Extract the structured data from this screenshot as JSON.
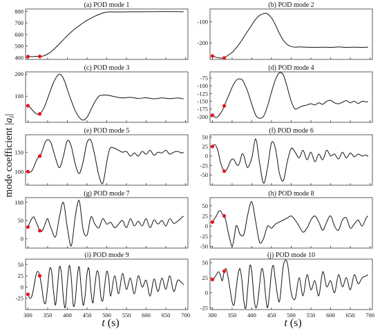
{
  "figure": {
    "ylabel_prefix": "mode coefficient |",
    "ylabel_var": "a",
    "ylabel_sub": "i",
    "ylabel_suffix": "|",
    "xlabel_var": "t",
    "xlabel_unit": " (s)",
    "colors": {
      "line": "#111111",
      "marker": "#e8141b",
      "axis": "#333333"
    }
  },
  "chart_data": [
    {
      "type": "line",
      "title": "(a) POD mode 1",
      "xlim": [
        294,
        706
      ],
      "ylim": [
        385,
        820
      ],
      "yticks": [
        "400",
        "500",
        "600",
        "700",
        "800"
      ],
      "xticks": [],
      "x": [
        300,
        305,
        310,
        315,
        320,
        325,
        330,
        335,
        340,
        345,
        350,
        355,
        360,
        365,
        370,
        380,
        390,
        400,
        410,
        420,
        430,
        440,
        450,
        460,
        470,
        480,
        490,
        500,
        505,
        510,
        520,
        540,
        560,
        580,
        600,
        620,
        640,
        660,
        680,
        695
      ],
      "y": [
        410,
        410,
        409,
        410,
        412,
        411,
        411,
        412,
        416,
        423,
        432,
        442,
        455,
        470,
        486,
        520,
        555,
        590,
        622,
        650,
        676,
        700,
        722,
        741,
        758,
        772,
        785,
        793,
        795,
        795,
        795,
        795,
        796,
        796,
        797,
        797,
        798,
        798,
        797,
        796
      ],
      "markers": [
        {
          "x": 300,
          "y": 410
        },
        {
          "x": 330,
          "y": 411
        }
      ]
    },
    {
      "type": "line",
      "title": "(b) POD mode 2",
      "xlim": [
        294,
        706
      ],
      "ylim": [
        -278,
        -40
      ],
      "yticks": [
        "-100",
        "-200"
      ],
      "xticks": [],
      "x": [
        300,
        305,
        310,
        315,
        320,
        325,
        330,
        340,
        350,
        360,
        370,
        380,
        390,
        400,
        410,
        420,
        430,
        435,
        440,
        450,
        460,
        470,
        480,
        490,
        500,
        510,
        520,
        540,
        560,
        580,
        600,
        620,
        640,
        660,
        680,
        695
      ],
      "y": [
        -262,
        -265,
        -268,
        -270,
        -271,
        -272,
        -271,
        -258,
        -245,
        -225,
        -200,
        -172,
        -143,
        -115,
        -88,
        -70,
        -62,
        -60,
        -63,
        -82,
        -115,
        -155,
        -188,
        -208,
        -217,
        -220,
        -219,
        -220,
        -221,
        -220,
        -221,
        -219,
        -221,
        -220,
        -221,
        -220
      ],
      "markers": [
        {
          "x": 300,
          "y": -262
        },
        {
          "x": 330,
          "y": -271
        }
      ]
    },
    {
      "type": "line",
      "title": "(c) POD mode 3",
      "xlim": [
        294,
        706
      ],
      "ylim": [
        -18,
        210
      ],
      "yticks": [
        "100",
        "200"
      ],
      "xticks": [],
      "x": [
        300,
        305,
        310,
        315,
        320,
        325,
        330,
        335,
        340,
        345,
        350,
        355,
        360,
        365,
        370,
        375,
        380,
        385,
        390,
        395,
        400,
        410,
        420,
        430,
        440,
        450,
        460,
        470,
        480,
        490,
        500,
        510,
        520,
        540,
        560,
        580,
        600,
        620,
        640,
        660,
        680,
        695
      ],
      "y": [
        57,
        50,
        40,
        30,
        22,
        18,
        20,
        30,
        45,
        65,
        90,
        115,
        140,
        162,
        180,
        193,
        200,
        195,
        180,
        158,
        130,
        80,
        35,
        5,
        -8,
        5,
        40,
        75,
        100,
        105,
        105,
        102,
        98,
        92,
        95,
        90,
        93,
        88,
        92,
        89,
        92,
        88
      ],
      "markers": [
        {
          "x": 300,
          "y": 57
        },
        {
          "x": 330,
          "y": 20
        }
      ]
    },
    {
      "type": "line",
      "title": "(d) POD mode 4",
      "xlim": [
        294,
        706
      ],
      "ylim": [
        -218,
        -55
      ],
      "yticks": [
        "-75",
        "-100",
        "-125",
        "-150",
        "-175",
        "-200"
      ],
      "xticks": [],
      "x": [
        300,
        305,
        310,
        315,
        320,
        325,
        330,
        335,
        340,
        345,
        350,
        355,
        360,
        365,
        370,
        375,
        380,
        390,
        400,
        410,
        420,
        430,
        440,
        450,
        460,
        470,
        480,
        490,
        500,
        510,
        520,
        530,
        540,
        550,
        560,
        570,
        580,
        590,
        600,
        610,
        620,
        630,
        640,
        650,
        660,
        670,
        680,
        690,
        695
      ],
      "y": [
        -195,
        -200,
        -203,
        -198,
        -190,
        -180,
        -165,
        -150,
        -135,
        -120,
        -105,
        -92,
        -83,
        -78,
        -78,
        -80,
        -90,
        -120,
        -160,
        -195,
        -205,
        -198,
        -165,
        -120,
        -80,
        -58,
        -65,
        -105,
        -150,
        -175,
        -170,
        -165,
        -162,
        -158,
        -162,
        -155,
        -160,
        -150,
        -147,
        -155,
        -158,
        -153,
        -148,
        -155,
        -150,
        -157,
        -150,
        -152,
        -151
      ],
      "markers": [
        {
          "x": 300,
          "y": -195
        },
        {
          "x": 330,
          "y": -165
        }
      ]
    },
    {
      "type": "line",
      "title": "(e) POD mode 5",
      "xlim": [
        294,
        706
      ],
      "ylim": [
        65,
        195
      ],
      "yticks": [
        "100",
        "150"
      ],
      "xticks": [],
      "x": [
        300,
        305,
        310,
        315,
        320,
        325,
        330,
        335,
        340,
        345,
        350,
        355,
        360,
        370,
        380,
        390,
        400,
        410,
        420,
        430,
        440,
        450,
        460,
        470,
        480,
        490,
        500,
        505,
        510,
        520,
        530,
        540,
        550,
        560,
        570,
        580,
        590,
        600,
        610,
        620,
        630,
        640,
        650,
        660,
        670,
        680,
        690,
        695
      ],
      "y": [
        100,
        98,
        102,
        112,
        125,
        135,
        140,
        150,
        165,
        178,
        182,
        180,
        170,
        135,
        110,
        140,
        180,
        165,
        120,
        95,
        125,
        175,
        180,
        140,
        90,
        70,
        125,
        150,
        162,
        160,
        155,
        150,
        152,
        140,
        148,
        140,
        152,
        145,
        155,
        142,
        150,
        148,
        155,
        145,
        150,
        152,
        148,
        150
      ],
      "markers": [
        {
          "x": 300,
          "y": 100
        },
        {
          "x": 330,
          "y": 140
        }
      ]
    },
    {
      "type": "line",
      "title": "(f) POD mode 6",
      "xlim": [
        294,
        706
      ],
      "ylim": [
        -77,
        56
      ],
      "yticks": [
        "50",
        "25",
        "0",
        "-25",
        "-50"
      ],
      "xticks": [],
      "x": [
        300,
        305,
        310,
        315,
        320,
        325,
        330,
        335,
        340,
        345,
        350,
        355,
        360,
        365,
        370,
        375,
        380,
        385,
        390,
        400,
        410,
        420,
        430,
        440,
        450,
        460,
        470,
        480,
        490,
        500,
        510,
        520,
        530,
        540,
        550,
        560,
        570,
        580,
        590,
        600,
        610,
        620,
        630,
        640,
        650,
        660,
        670,
        680,
        690,
        695
      ],
      "y": [
        25,
        30,
        25,
        10,
        -15,
        -30,
        -40,
        -38,
        -28,
        -15,
        -8,
        -10,
        -20,
        -25,
        -15,
        5,
        0,
        -20,
        -30,
        -5,
        45,
        -20,
        -72,
        -30,
        35,
        20,
        -45,
        -65,
        -15,
        20,
        10,
        -5,
        15,
        -10,
        10,
        -15,
        5,
        -10,
        15,
        0,
        5,
        -8,
        10,
        -5,
        8,
        -2,
        5,
        0,
        3,
        -2
      ],
      "markers": [
        {
          "x": 300,
          "y": 25
        },
        {
          "x": 330,
          "y": -40
        }
      ]
    },
    {
      "type": "line",
      "title": "(g) POD mode 7",
      "xlim": [
        294,
        706
      ],
      "ylim": [
        -26,
        113
      ],
      "yticks": [
        "100",
        "50",
        "0"
      ],
      "xticks": [],
      "x": [
        300,
        305,
        310,
        315,
        320,
        325,
        330,
        335,
        340,
        345,
        350,
        355,
        360,
        370,
        380,
        390,
        400,
        410,
        420,
        430,
        440,
        450,
        460,
        470,
        480,
        490,
        500,
        510,
        520,
        530,
        540,
        550,
        560,
        570,
        580,
        590,
        600,
        610,
        620,
        630,
        640,
        650,
        660,
        670,
        680,
        690,
        695
      ],
      "y": [
        30,
        45,
        55,
        60,
        48,
        35,
        22,
        20,
        30,
        45,
        55,
        40,
        25,
        5,
        60,
        100,
        30,
        -20,
        60,
        105,
        25,
        10,
        60,
        40,
        30,
        55,
        40,
        45,
        30,
        40,
        50,
        30,
        55,
        35,
        48,
        35,
        55,
        30,
        52,
        40,
        50,
        35,
        55,
        42,
        48,
        58,
        62
      ],
      "markers": [
        {
          "x": 300,
          "y": 32
        },
        {
          "x": 330,
          "y": 22
        }
      ]
    },
    {
      "type": "line",
      "title": "(h) POD mode 8",
      "xlim": [
        294,
        706
      ],
      "ylim": [
        -54,
        70
      ],
      "yticks": [
        "50",
        "25",
        "0",
        "-25",
        "-50"
      ],
      "xticks": [],
      "x": [
        300,
        305,
        310,
        315,
        320,
        325,
        330,
        335,
        340,
        345,
        350,
        355,
        360,
        365,
        370,
        380,
        390,
        400,
        410,
        420,
        430,
        440,
        450,
        460,
        470,
        480,
        490,
        500,
        510,
        520,
        530,
        540,
        550,
        560,
        570,
        580,
        590,
        600,
        610,
        620,
        630,
        640,
        650,
        660,
        670,
        680,
        690,
        695
      ],
      "y": [
        10,
        18,
        25,
        35,
        38,
        30,
        25,
        10,
        -15,
        -35,
        -50,
        -30,
        0,
        -5,
        -20,
        -20,
        30,
        60,
        10,
        -40,
        -30,
        0,
        -5,
        5,
        10,
        15,
        20,
        25,
        15,
        0,
        -15,
        -5,
        15,
        25,
        10,
        -10,
        10,
        25,
        0,
        -10,
        15,
        20,
        -5,
        5,
        15,
        0,
        20,
        25
      ],
      "markers": [
        {
          "x": 300,
          "y": 10
        },
        {
          "x": 330,
          "y": 25
        }
      ]
    },
    {
      "type": "line",
      "title": "(i) POD mode 9",
      "xlim": [
        294,
        706
      ],
      "ylim": [
        -50,
        62
      ],
      "yticks": [
        "50",
        "25",
        "0",
        "-25"
      ],
      "xticks": [],
      "x": [
        300,
        305,
        310,
        315,
        320,
        325,
        330,
        335,
        340,
        345,
        350,
        355,
        360,
        365,
        370,
        375,
        380,
        385,
        390,
        395,
        400,
        405,
        410,
        415,
        420,
        425,
        430,
        435,
        440,
        445,
        450,
        455,
        460,
        465,
        470,
        475,
        480,
        485,
        490,
        495,
        500,
        505,
        510,
        520,
        530,
        540,
        550,
        560,
        570,
        580,
        590,
        600,
        610,
        620,
        630,
        640,
        650,
        660,
        670,
        680,
        690,
        695
      ],
      "y": [
        -15,
        -25,
        -20,
        0,
        25,
        35,
        25,
        0,
        -30,
        -35,
        0,
        40,
        35,
        -10,
        -40,
        0,
        45,
        30,
        -25,
        -45,
        10,
        48,
        20,
        -40,
        -30,
        20,
        45,
        0,
        -40,
        -20,
        30,
        40,
        -10,
        -35,
        5,
        35,
        25,
        -20,
        -30,
        5,
        35,
        20,
        -20,
        25,
        -15,
        30,
        -5,
        20,
        -15,
        25,
        0,
        15,
        -20,
        18,
        -10,
        20,
        -5,
        25,
        -10,
        15,
        10,
        5
      ],
      "markers": [
        {
          "x": 300,
          "y": -16
        },
        {
          "x": 330,
          "y": 25
        }
      ]
    },
    {
      "type": "line",
      "title": "(j) POD mode 10",
      "xlim": [
        294,
        706
      ],
      "ylim": [
        -28,
        56
      ],
      "yticks": [
        "50",
        "25",
        "0",
        "-25"
      ],
      "xticks": [],
      "x": [
        300,
        305,
        310,
        315,
        320,
        325,
        330,
        335,
        340,
        345,
        350,
        355,
        360,
        365,
        370,
        375,
        380,
        385,
        390,
        395,
        400,
        405,
        410,
        415,
        420,
        425,
        430,
        435,
        440,
        445,
        450,
        455,
        460,
        470,
        480,
        490,
        500,
        510,
        520,
        530,
        540,
        550,
        560,
        570,
        580,
        590,
        600,
        610,
        620,
        630,
        640,
        650,
        660,
        670,
        680,
        690,
        695
      ],
      "y": [
        22,
        25,
        30,
        35,
        30,
        20,
        35,
        40,
        25,
        5,
        -15,
        -20,
        5,
        30,
        40,
        20,
        -15,
        -25,
        10,
        45,
        35,
        -5,
        -25,
        -15,
        15,
        40,
        30,
        -5,
        -25,
        0,
        35,
        45,
        20,
        -15,
        45,
        50,
        0,
        -10,
        25,
        -5,
        30,
        5,
        20,
        -5,
        35,
        10,
        20,
        0,
        30,
        10,
        25,
        5,
        30,
        15,
        25,
        28,
        30
      ],
      "markers": [
        {
          "x": 300,
          "y": 22
        },
        {
          "x": 330,
          "y": 36
        }
      ]
    }
  ],
  "x_axis_ticks": [
    "300",
    "350",
    "400",
    "450",
    "500",
    "550",
    "600",
    "650",
    "700"
  ]
}
